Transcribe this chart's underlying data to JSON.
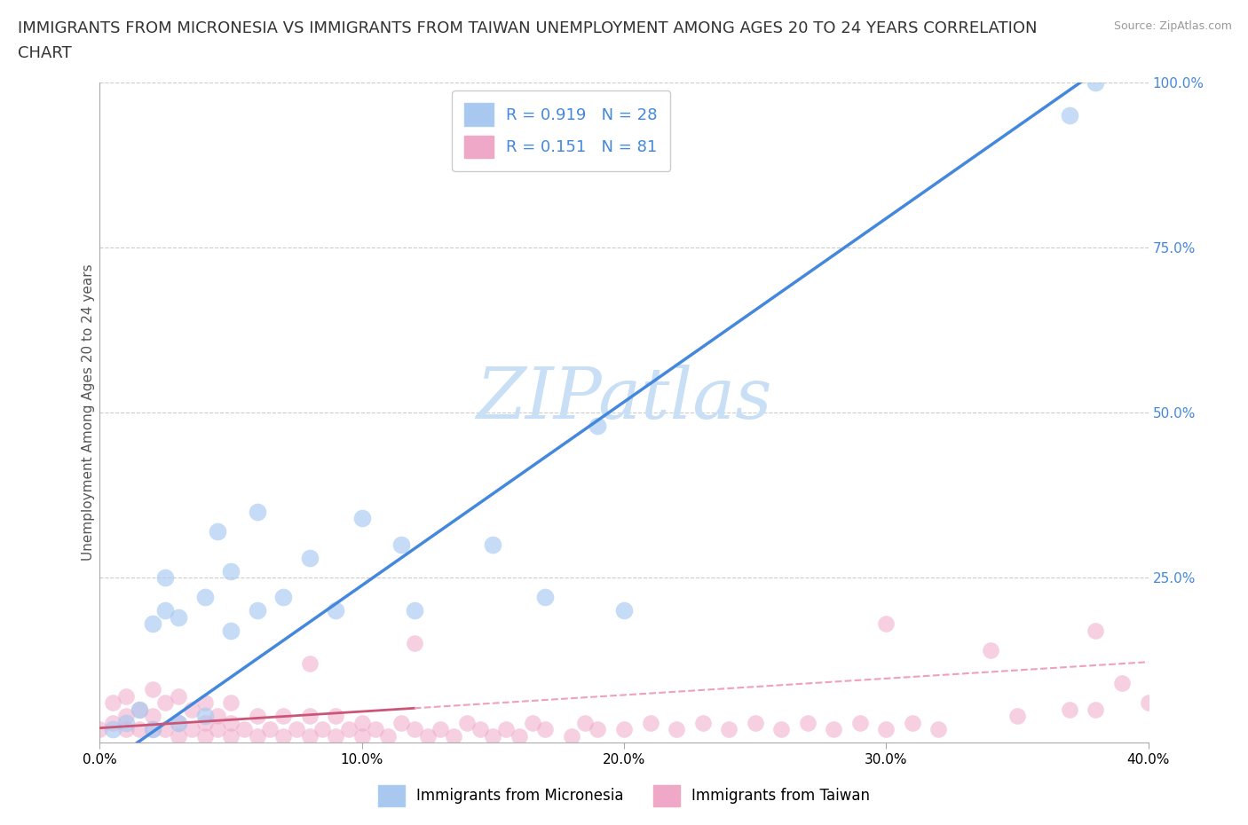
{
  "title_line1": "IMMIGRANTS FROM MICRONESIA VS IMMIGRANTS FROM TAIWAN UNEMPLOYMENT AMONG AGES 20 TO 24 YEARS CORRELATION",
  "title_line2": "CHART",
  "source_text": "Source: ZipAtlas.com",
  "ylabel": "Unemployment Among Ages 20 to 24 years",
  "xlim": [
    0.0,
    0.4
  ],
  "ylim": [
    0.0,
    1.0
  ],
  "xticks": [
    0.0,
    0.1,
    0.2,
    0.3,
    0.4
  ],
  "xticklabels": [
    "0.0%",
    "10.0%",
    "20.0%",
    "30.0%",
    "40.0%"
  ],
  "yticks_right": [
    0.25,
    0.5,
    0.75,
    1.0
  ],
  "yticklabels_right": [
    "25.0%",
    "50.0%",
    "75.0%",
    "100.0%"
  ],
  "micronesia_R": 0.919,
  "micronesia_N": 28,
  "taiwan_R": 0.151,
  "taiwan_N": 81,
  "micronesia_color": "#a8c8f0",
  "taiwan_color": "#f0a8c8",
  "micronesia_line_color": "#4488dd",
  "taiwan_line_solid_color": "#cc5577",
  "taiwan_line_dashed_color": "#f0a0bb",
  "watermark_color": "#c8dff5",
  "background_color": "#ffffff",
  "micronesia_x": [
    0.005,
    0.01,
    0.015,
    0.02,
    0.02,
    0.025,
    0.025,
    0.03,
    0.03,
    0.04,
    0.04,
    0.045,
    0.05,
    0.05,
    0.06,
    0.06,
    0.07,
    0.08,
    0.09,
    0.1,
    0.115,
    0.12,
    0.15,
    0.17,
    0.19,
    0.2,
    0.37,
    0.38
  ],
  "micronesia_y": [
    0.02,
    0.03,
    0.05,
    0.02,
    0.18,
    0.2,
    0.25,
    0.03,
    0.19,
    0.22,
    0.04,
    0.32,
    0.17,
    0.26,
    0.2,
    0.35,
    0.22,
    0.28,
    0.2,
    0.34,
    0.3,
    0.2,
    0.3,
    0.22,
    0.48,
    0.2,
    0.95,
    1.0
  ],
  "taiwan_x": [
    0.0,
    0.005,
    0.005,
    0.01,
    0.01,
    0.01,
    0.015,
    0.015,
    0.02,
    0.02,
    0.02,
    0.025,
    0.025,
    0.03,
    0.03,
    0.03,
    0.035,
    0.035,
    0.04,
    0.04,
    0.04,
    0.045,
    0.045,
    0.05,
    0.05,
    0.05,
    0.055,
    0.06,
    0.06,
    0.065,
    0.07,
    0.07,
    0.075,
    0.08,
    0.08,
    0.085,
    0.09,
    0.09,
    0.095,
    0.1,
    0.1,
    0.105,
    0.11,
    0.115,
    0.12,
    0.125,
    0.13,
    0.135,
    0.14,
    0.145,
    0.15,
    0.155,
    0.16,
    0.165,
    0.17,
    0.18,
    0.185,
    0.19,
    0.2,
    0.21,
    0.22,
    0.23,
    0.24,
    0.25,
    0.26,
    0.27,
    0.28,
    0.29,
    0.3,
    0.31,
    0.32,
    0.34,
    0.35,
    0.37,
    0.38,
    0.39,
    0.4,
    0.38,
    0.3,
    0.12,
    0.08
  ],
  "taiwan_y": [
    0.02,
    0.03,
    0.06,
    0.02,
    0.04,
    0.07,
    0.02,
    0.05,
    0.02,
    0.04,
    0.08,
    0.02,
    0.06,
    0.01,
    0.03,
    0.07,
    0.02,
    0.05,
    0.01,
    0.03,
    0.06,
    0.02,
    0.04,
    0.01,
    0.03,
    0.06,
    0.02,
    0.01,
    0.04,
    0.02,
    0.01,
    0.04,
    0.02,
    0.01,
    0.04,
    0.02,
    0.01,
    0.04,
    0.02,
    0.01,
    0.03,
    0.02,
    0.01,
    0.03,
    0.02,
    0.01,
    0.02,
    0.01,
    0.03,
    0.02,
    0.01,
    0.02,
    0.01,
    0.03,
    0.02,
    0.01,
    0.03,
    0.02,
    0.02,
    0.03,
    0.02,
    0.03,
    0.02,
    0.03,
    0.02,
    0.03,
    0.02,
    0.03,
    0.02,
    0.03,
    0.02,
    0.14,
    0.04,
    0.05,
    0.05,
    0.09,
    0.06,
    0.17,
    0.18,
    0.15,
    0.12
  ],
  "legend_label_micronesia": "Immigrants from Micronesia",
  "legend_label_taiwan": "Immigrants from Taiwan",
  "title_fontsize": 13,
  "axis_label_fontsize": 11,
  "tick_fontsize": 11,
  "legend_fontsize": 13
}
